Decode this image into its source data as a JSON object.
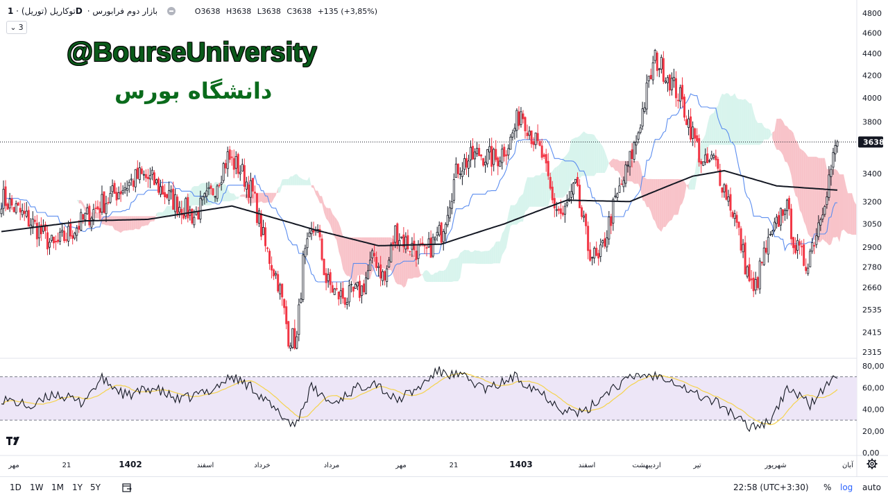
{
  "header": {
    "symbol": "توکاریل (توریل)",
    "timeframe": "1D",
    "market": "بازار دوم فرابورس",
    "ohlc": {
      "o_label": "O",
      "o": "3638",
      "h_label": "H",
      "h": "3638",
      "l_label": "L",
      "l": "3638",
      "c_label": "C",
      "c": "3638",
      "change": "+135 (+3,85%)"
    },
    "collapse_count": "3"
  },
  "watermark": {
    "line1": "@BourseUniversity",
    "line2": "دانشگاه بورس"
  },
  "price_axis": {
    "ticks": [
      4800,
      4600,
      4400,
      4200,
      4000,
      3800,
      3400,
      3200,
      3050,
      2900,
      2780,
      2660,
      2535,
      2415,
      2315
    ],
    "last_price_label": "3638",
    "last_price": 3638
  },
  "rsi_axis": {
    "ticks": [
      "80,00",
      "60,00",
      "40,00",
      "20,00",
      "0,00"
    ],
    "upper_band": 70,
    "lower_band": 30
  },
  "time_axis": {
    "labels": [
      "مهر",
      "21",
      "1402",
      "اسفند",
      "خرداد",
      "مرداد",
      "مهر",
      "21",
      "1403",
      "اسفند",
      "اردیبهشت",
      "تیر",
      "شهریور",
      "آبان"
    ]
  },
  "bottom": {
    "ranges": [
      "1D",
      "1W",
      "1M",
      "1Y",
      "5Y"
    ],
    "time": "22:58 (UTC+3:30)",
    "percent": "%",
    "log": "log",
    "auto": "auto"
  },
  "colors": {
    "up": "#131722",
    "down": "#f23645",
    "ma": "#131722",
    "kijun": "#5b8def",
    "cloud_bear": "#f7b9bf",
    "cloud_bull": "#c8f0e6",
    "rsi": "#131722",
    "rsi_ma": "#f5d34d",
    "rsi_band": "#ede6f7",
    "accent_log": "#2962ff"
  },
  "chart_data": {
    "type": "candlestick",
    "scale": "log",
    "ylim": [
      2250,
      4950
    ],
    "close_anchors": [
      [
        0,
        3230
      ],
      [
        15,
        3050
      ],
      [
        25,
        2900
      ],
      [
        35,
        3020
      ],
      [
        45,
        3150
      ],
      [
        58,
        3300
      ],
      [
        66,
        3380
      ],
      [
        72,
        3350
      ],
      [
        80,
        3230
      ],
      [
        92,
        3100
      ],
      [
        100,
        3250
      ],
      [
        108,
        3520
      ],
      [
        114,
        3430
      ],
      [
        120,
        3250
      ],
      [
        126,
        2900
      ],
      [
        132,
        2700
      ],
      [
        137,
        2400
      ],
      [
        141,
        2370
      ],
      [
        144,
        2800
      ],
      [
        150,
        3050
      ],
      [
        155,
        2700
      ],
      [
        160,
        2620
      ],
      [
        165,
        2600
      ],
      [
        172,
        2650
      ],
      [
        178,
        2850
      ],
      [
        183,
        2700
      ],
      [
        188,
        3000
      ],
      [
        194,
        2920
      ],
      [
        202,
        2850
      ],
      [
        210,
        3000
      ],
      [
        218,
        3450
      ],
      [
        228,
        3550
      ],
      [
        236,
        3500
      ],
      [
        243,
        3650
      ],
      [
        248,
        3900
      ],
      [
        253,
        3700
      ],
      [
        258,
        3530
      ],
      [
        263,
        3200
      ],
      [
        268,
        3100
      ],
      [
        274,
        3300
      ],
      [
        280,
        2900
      ],
      [
        285,
        2800
      ],
      [
        292,
        3150
      ],
      [
        298,
        3400
      ],
      [
        303,
        3650
      ],
      [
        308,
        4050
      ],
      [
        312,
        4350
      ],
      [
        318,
        4200
      ],
      [
        324,
        4000
      ],
      [
        330,
        3700
      ],
      [
        335,
        3450
      ],
      [
        340,
        3500
      ],
      [
        345,
        3300
      ],
      [
        350,
        3100
      ],
      [
        355,
        2800
      ],
      [
        359,
        2620
      ],
      [
        364,
        2850
      ],
      [
        369,
        3000
      ],
      [
        374,
        3200
      ],
      [
        379,
        2900
      ],
      [
        384,
        2800
      ],
      [
        389,
        3000
      ],
      [
        394,
        3300
      ],
      [
        399,
        3638
      ]
    ],
    "ma200_anchors": [
      [
        0,
        3000
      ],
      [
        40,
        3070
      ],
      [
        70,
        3080
      ],
      [
        110,
        3170
      ],
      [
        150,
        3010
      ],
      [
        180,
        2910
      ],
      [
        210,
        2920
      ],
      [
        240,
        3050
      ],
      [
        270,
        3210
      ],
      [
        300,
        3200
      ],
      [
        330,
        3380
      ],
      [
        345,
        3420
      ],
      [
        370,
        3310
      ],
      [
        399,
        3280
      ]
    ],
    "rsi_anchors": [
      [
        0,
        50
      ],
      [
        15,
        42
      ],
      [
        25,
        55
      ],
      [
        38,
        46
      ],
      [
        48,
        68
      ],
      [
        60,
        52
      ],
      [
        72,
        60
      ],
      [
        85,
        48
      ],
      [
        100,
        58
      ],
      [
        110,
        70
      ],
      [
        120,
        60
      ],
      [
        130,
        40
      ],
      [
        140,
        25
      ],
      [
        148,
        60
      ],
      [
        158,
        45
      ],
      [
        168,
        58
      ],
      [
        178,
        66
      ],
      [
        188,
        48
      ],
      [
        198,
        58
      ],
      [
        208,
        75
      ],
      [
        220,
        70
      ],
      [
        232,
        58
      ],
      [
        245,
        70
      ],
      [
        256,
        58
      ],
      [
        268,
        40
      ],
      [
        278,
        36
      ],
      [
        290,
        58
      ],
      [
        304,
        72
      ],
      [
        318,
        70
      ],
      [
        330,
        55
      ],
      [
        344,
        44
      ],
      [
        356,
        24
      ],
      [
        366,
        28
      ],
      [
        376,
        60
      ],
      [
        386,
        44
      ],
      [
        396,
        66
      ],
      [
        399,
        70
      ]
    ]
  }
}
